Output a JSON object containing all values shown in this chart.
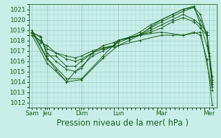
{
  "ylabel": "Pression niveau de la mer( hPa )",
  "ylim": [
    1011.5,
    1021.5
  ],
  "yticks": [
    1012,
    1013,
    1014,
    1015,
    1016,
    1017,
    1018,
    1019,
    1020,
    1021
  ],
  "background_color": "#c8eee8",
  "grid_color": "#9ecec8",
  "line_color": "#1a5c1a",
  "day_labels": [
    "Sam",
    "Jeu",
    "Dim",
    "Lun",
    "Mar",
    "Mer"
  ],
  "day_positions": [
    0.0,
    0.7,
    2.3,
    4.0,
    6.0,
    8.2
  ],
  "tick_fontsize": 6.5,
  "xlabel_fontsize": 8.5,
  "lines": [
    {
      "x": [
        0.0,
        0.7,
        1.1,
        1.6,
        2.0,
        2.3,
        2.8,
        3.3,
        3.8,
        4.0,
        4.5,
        5.0,
        5.5,
        6.0,
        6.5,
        7.0,
        7.5,
        7.8,
        8.1,
        8.2,
        8.35
      ],
      "y": [
        1018.8,
        1016.2,
        1015.2,
        1014.0,
        1015.0,
        1015.3,
        1016.8,
        1017.2,
        1017.4,
        1017.5,
        1018.0,
        1018.5,
        1019.3,
        1020.0,
        1020.5,
        1021.0,
        1021.3,
        1019.5,
        1017.5,
        1016.5,
        1013.5
      ]
    },
    {
      "x": [
        0.0,
        0.4,
        0.7,
        1.1,
        1.6,
        2.0,
        2.3,
        2.8,
        3.3,
        3.8,
        4.0,
        4.5,
        5.0,
        5.5,
        6.0,
        6.5,
        7.0,
        7.5,
        7.8,
        8.1,
        8.2,
        8.35
      ],
      "y": [
        1018.8,
        1018.3,
        1016.8,
        1016.0,
        1015.2,
        1015.0,
        1015.5,
        1016.5,
        1017.0,
        1017.5,
        1017.8,
        1018.2,
        1018.6,
        1019.2,
        1019.8,
        1020.3,
        1020.8,
        1021.2,
        1020.0,
        1018.5,
        1016.8,
        1014.0
      ]
    },
    {
      "x": [
        0.0,
        0.4,
        0.7,
        1.1,
        1.6,
        2.0,
        2.3,
        2.8,
        3.3,
        3.8,
        4.0,
        4.5,
        5.0,
        5.5,
        6.0,
        6.5,
        7.0,
        7.5,
        7.8,
        8.1,
        8.35
      ],
      "y": [
        1018.7,
        1018.4,
        1016.5,
        1016.5,
        1015.5,
        1015.5,
        1016.0,
        1016.8,
        1017.5,
        1017.8,
        1018.0,
        1018.3,
        1018.8,
        1019.5,
        1020.0,
        1020.5,
        1021.0,
        1021.2,
        1020.5,
        1018.5,
        1013.8
      ]
    },
    {
      "x": [
        0.0,
        0.4,
        0.7,
        1.1,
        1.6,
        2.0,
        2.3,
        2.8,
        3.3,
        3.8,
        4.0,
        4.5,
        5.0,
        5.5,
        6.0,
        6.5,
        7.0,
        7.5,
        7.8,
        8.1,
        8.35
      ],
      "y": [
        1018.5,
        1018.0,
        1017.2,
        1016.8,
        1016.2,
        1016.0,
        1016.2,
        1016.8,
        1017.2,
        1017.5,
        1018.0,
        1018.3,
        1018.5,
        1019.0,
        1019.5,
        1020.0,
        1020.5,
        1020.0,
        1019.5,
        1018.8,
        1014.5
      ]
    },
    {
      "x": [
        0.0,
        0.4,
        0.7,
        1.1,
        1.6,
        2.0,
        2.3,
        2.8,
        3.3,
        3.8,
        4.0,
        4.5,
        5.0,
        5.5,
        6.0,
        6.5,
        7.0,
        7.5,
        7.8,
        8.1,
        8.35
      ],
      "y": [
        1018.8,
        1017.8,
        1017.5,
        1016.8,
        1016.5,
        1016.3,
        1016.5,
        1017.0,
        1017.3,
        1017.5,
        1018.0,
        1018.2,
        1018.5,
        1018.8,
        1019.2,
        1019.8,
        1020.2,
        1019.8,
        1019.2,
        1018.5,
        1014.2
      ]
    },
    {
      "x": [
        0.0,
        0.7,
        1.6,
        2.3,
        3.3,
        4.0,
        5.0,
        6.0,
        6.5,
        7.0,
        7.5,
        7.8,
        8.1,
        8.35
      ],
      "y": [
        1018.5,
        1015.8,
        1014.0,
        1014.2,
        1016.3,
        1017.5,
        1018.0,
        1018.5,
        1018.5,
        1018.5,
        1018.8,
        1018.5,
        1016.2,
        1011.8
      ]
    },
    {
      "x": [
        0.0,
        0.7,
        1.6,
        2.3,
        3.3,
        4.0,
        5.0,
        6.0,
        7.0,
        7.8,
        8.35
      ],
      "y": [
        1019.0,
        1016.3,
        1014.3,
        1014.3,
        1016.5,
        1018.0,
        1018.5,
        1018.8,
        1018.5,
        1018.8,
        1013.2
      ]
    }
  ]
}
